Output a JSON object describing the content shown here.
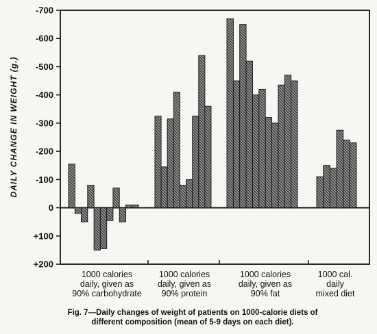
{
  "chart_data": {
    "type": "bar",
    "ylabel": "DAILY CHANGE IN WEIGHT (g.)",
    "ylim": [
      -700,
      200
    ],
    "yticks": [
      {
        "value": -700,
        "label": "-700"
      },
      {
        "value": -600,
        "label": "-600"
      },
      {
        "value": -500,
        "label": "-500"
      },
      {
        "value": -400,
        "label": "-400"
      },
      {
        "value": -300,
        "label": "-300"
      },
      {
        "value": -200,
        "label": "-200"
      },
      {
        "value": -100,
        "label": "-100"
      },
      {
        "value": 0,
        "label": "0"
      },
      {
        "value": 100,
        "label": "+100"
      },
      {
        "value": 200,
        "label": "+200"
      }
    ],
    "groups": [
      {
        "label_lines": [
          "1000 calories",
          "daily, given as",
          "90% carbohydrate"
        ],
        "values": [
          -155,
          20,
          50,
          -80,
          150,
          145,
          45,
          -70,
          50,
          -10,
          -10
        ]
      },
      {
        "label_lines": [
          "1000 calories",
          "daily, given as",
          "90% protein"
        ],
        "values": [
          -325,
          -145,
          -315,
          -410,
          -80,
          -100,
          -325,
          -540,
          -360
        ]
      },
      {
        "label_lines": [
          "1000 calories",
          "daily, given as",
          "90% fat"
        ],
        "values": [
          -670,
          -450,
          -650,
          -520,
          -400,
          -420,
          -320,
          -300,
          -435,
          -470,
          -450
        ]
      },
      {
        "label_lines": [
          "1000 cal.",
          "daily",
          "mixed diet"
        ],
        "values": [
          -110,
          -150,
          -140,
          -275,
          -240,
          -230
        ]
      }
    ],
    "caption_lines": [
      "Fig. 7—Daily changes of weight of patients on 1000-calorie diets of",
      "different composition (mean of 5-9 days on each diet)."
    ]
  }
}
